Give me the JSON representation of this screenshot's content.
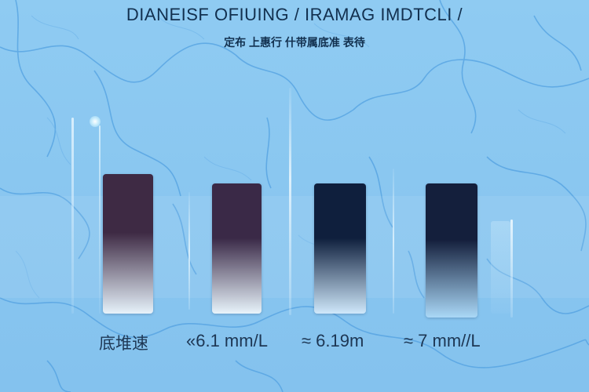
{
  "header": {
    "title": "DIANEISF OFIUING / IRAMAG IMDTCLI /",
    "subtitle": "定布 上惠行 什带属底准  表待"
  },
  "colors": {
    "background": "#8ec9f0",
    "vein": "#4f9fe0",
    "title_text": "#12304f"
  },
  "chart_data": {
    "type": "bar",
    "categories": [
      "底堆速",
      "«6.1 mm/L",
      "≈ 6.19m",
      "≈ 7 mm//L"
    ],
    "series": [
      {
        "top_colors": [
          "#3e2a44",
          "#3a2947",
          "#0f1f3d",
          "#141f3c"
        ],
        "bottom_colors": [
          "#e6f2fa",
          "#e8f4fb",
          "#cfe8fb",
          "#aad8f7"
        ]
      }
    ],
    "title": "DIANEISF OFIUING / IRAMAG IMDTCLI /",
    "xlabel": "",
    "ylabel": ""
  }
}
